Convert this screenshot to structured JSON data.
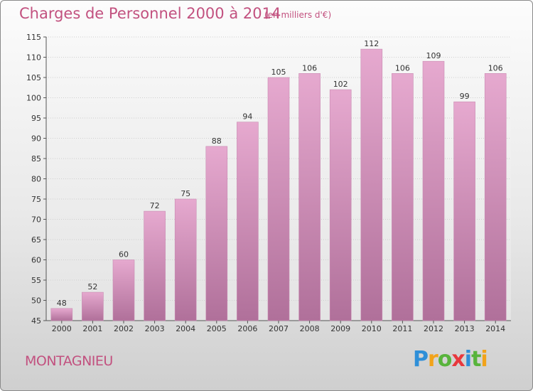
{
  "title": "Charges de Personnel 2000 à 2014",
  "subtitle": "(en milliers d'€)",
  "town": "MONTAGNIEU",
  "brand": {
    "letters": [
      "P",
      "r",
      "o",
      "x",
      "i",
      "t",
      "i"
    ],
    "colors": [
      "#2f8fd8",
      "#f2a31a",
      "#58b43c",
      "#e8383d",
      "#2f8fd8",
      "#58b43c",
      "#f2a31a"
    ]
  },
  "colors": {
    "bar_top": "#e6a9cf",
    "bar_bottom": "#b0709a",
    "title": "#c2517f"
  },
  "chart_data": {
    "type": "bar",
    "title": "Charges de Personnel 2000 à 2014",
    "subtitle": "(en milliers d'€)",
    "categories": [
      "2000",
      "2001",
      "2002",
      "2003",
      "2004",
      "2005",
      "2006",
      "2007",
      "2008",
      "2009",
      "2010",
      "2011",
      "2012",
      "2013",
      "2014"
    ],
    "values": [
      48,
      52,
      60,
      72,
      75,
      88,
      94,
      105,
      106,
      102,
      112,
      106,
      109,
      99,
      106
    ],
    "yticks": [
      45,
      50,
      55,
      60,
      65,
      70,
      75,
      80,
      85,
      90,
      95,
      100,
      105,
      110,
      115
    ],
    "ylim": [
      45,
      115
    ],
    "xlabel": "",
    "ylabel": "",
    "grid": true
  }
}
